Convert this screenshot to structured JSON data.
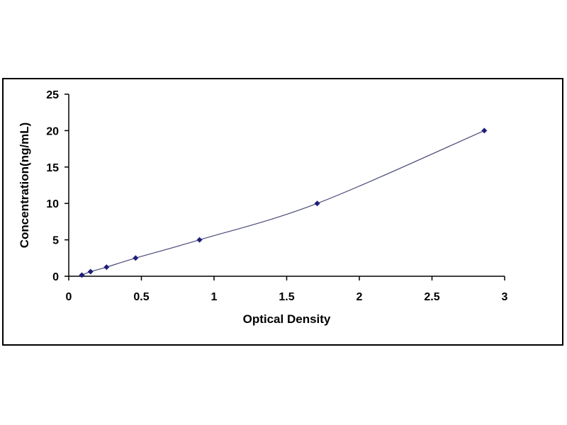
{
  "chart_data": {
    "type": "scatter",
    "title": "",
    "xlabel": "Optical Density",
    "ylabel": "Concentration(ng/mL)",
    "xlim": [
      0,
      3
    ],
    "ylim": [
      0,
      25
    ],
    "x_ticks": [
      "0",
      "0.5",
      "1",
      "1.5",
      "2",
      "2.5",
      "3"
    ],
    "y_ticks": [
      "0",
      "5",
      "10",
      "15",
      "20",
      "25"
    ],
    "grid": false,
    "legend": "none",
    "trendline": "smooth curve through points",
    "series": [
      {
        "x": [
          0.09,
          0.15,
          0.26,
          0.46,
          0.9,
          1.71,
          2.86
        ],
        "y": [
          0.16,
          0.63,
          1.25,
          2.5,
          5,
          10,
          20
        ]
      }
    ],
    "colors": {
      "marker": "#1f1f7a",
      "line": "#4a4a7a",
      "axis": "#000000"
    }
  }
}
